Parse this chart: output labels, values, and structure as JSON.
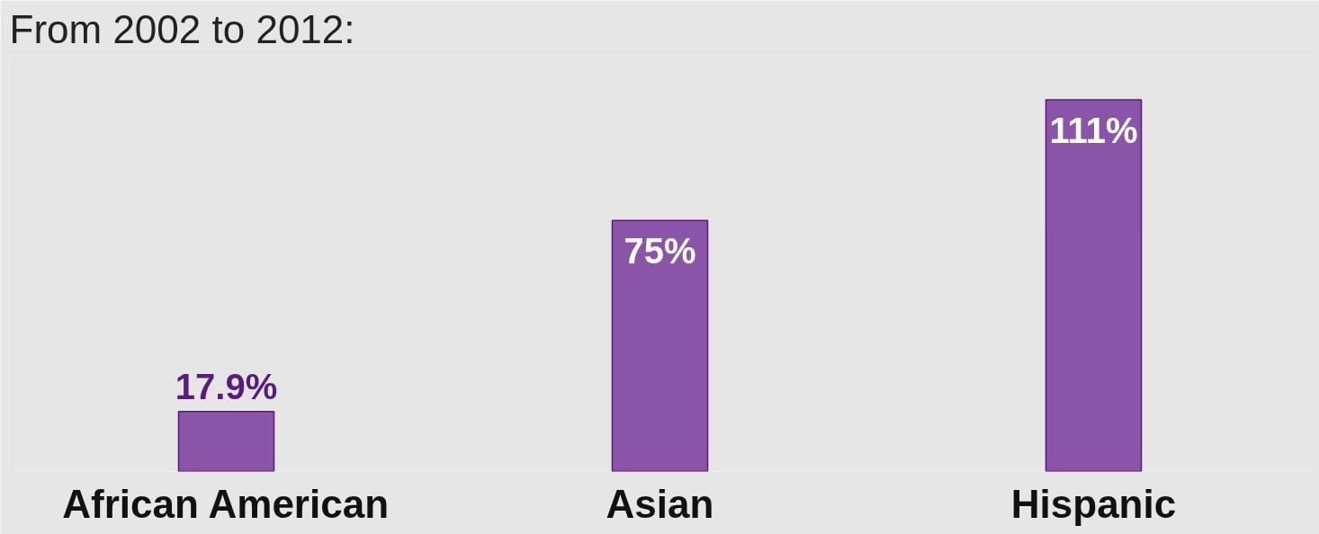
{
  "chart_data": {
    "type": "bar",
    "title": "From 2002 to 2012:",
    "categories": [
      "African American",
      "Asian",
      "Hispanic"
    ],
    "values": [
      17.9,
      75,
      111
    ],
    "value_labels": [
      "17.9%",
      "75%",
      "111%"
    ],
    "color": "#8a55a8"
  }
}
